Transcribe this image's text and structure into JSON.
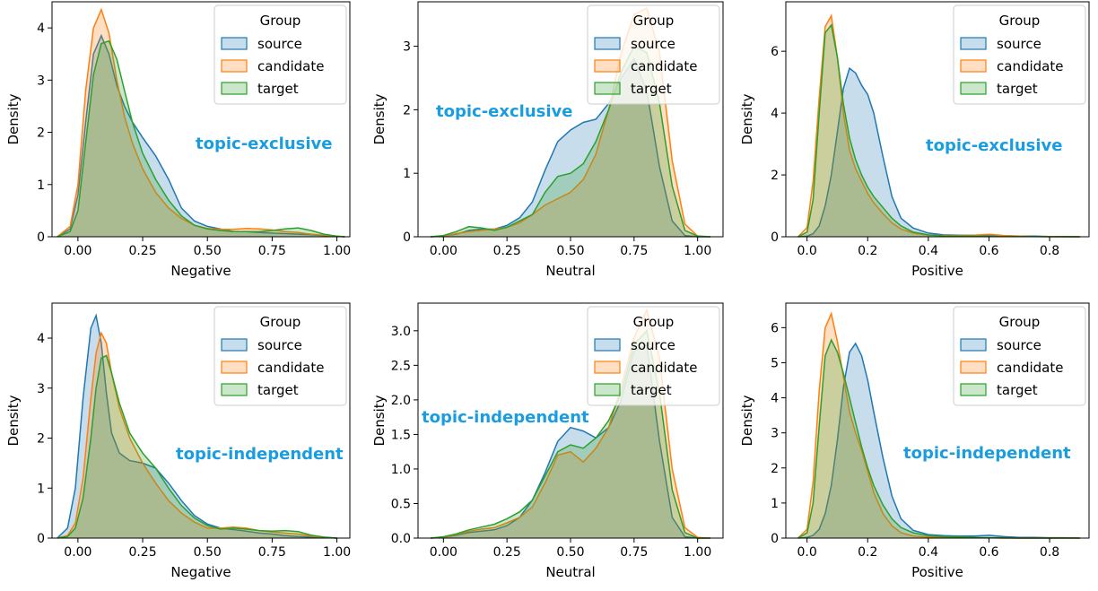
{
  "chart_data": [
    {
      "type": "area",
      "xlabel": "Negative",
      "ylabel": "Density",
      "xlim": [
        -0.1,
        1.05
      ],
      "ylim": [
        0,
        4.5
      ],
      "xticks": [
        "0.00",
        "0.25",
        "0.50",
        "0.75",
        "1.00"
      ],
      "yticks": [
        "0",
        "1",
        "2",
        "3",
        "4"
      ],
      "annotation": "topic-exclusive",
      "legend": {
        "title": "Group",
        "placement": "top-right",
        "entries": [
          "source",
          "candidate",
          "target"
        ]
      },
      "x": [
        -0.08,
        -0.03,
        0.0,
        0.03,
        0.06,
        0.09,
        0.12,
        0.15,
        0.18,
        0.21,
        0.25,
        0.3,
        0.35,
        0.4,
        0.45,
        0.5,
        0.55,
        0.6,
        0.65,
        0.7,
        0.75,
        0.8,
        0.85,
        0.9,
        0.95,
        1.0,
        1.03
      ],
      "series": [
        {
          "name": "source",
          "color": "#1f77b4",
          "values": [
            0,
            0.15,
            0.8,
            2.2,
            3.5,
            3.85,
            3.5,
            2.9,
            2.5,
            2.2,
            1.9,
            1.55,
            1.1,
            0.55,
            0.3,
            0.2,
            0.15,
            0.1,
            0.1,
            0.08,
            0.07,
            0.06,
            0.05,
            0.04,
            0.02,
            0.01,
            0
          ]
        },
        {
          "name": "candidate",
          "color": "#ff7f0e",
          "values": [
            0,
            0.2,
            1.0,
            2.8,
            4.0,
            4.35,
            3.9,
            3.0,
            2.3,
            1.8,
            1.3,
            0.85,
            0.55,
            0.35,
            0.22,
            0.16,
            0.14,
            0.14,
            0.16,
            0.15,
            0.13,
            0.1,
            0.08,
            0.05,
            0.03,
            0.01,
            0
          ]
        },
        {
          "name": "target",
          "color": "#2ca02c",
          "values": [
            0,
            0.1,
            0.5,
            1.8,
            3.1,
            3.7,
            3.75,
            3.4,
            2.8,
            2.2,
            1.6,
            1.1,
            0.7,
            0.4,
            0.22,
            0.15,
            0.12,
            0.1,
            0.1,
            0.1,
            0.12,
            0.15,
            0.17,
            0.12,
            0.05,
            0.01,
            0
          ]
        }
      ]
    },
    {
      "type": "area",
      "xlabel": "Neutral",
      "ylabel": "Density",
      "xlim": [
        -0.1,
        1.1
      ],
      "ylim": [
        0,
        3.7
      ],
      "xticks": [
        "0.00",
        "0.25",
        "0.50",
        "0.75",
        "1.00"
      ],
      "yticks": [
        "0",
        "1",
        "2",
        "3"
      ],
      "annotation": "topic-exclusive",
      "legend": {
        "title": "Group",
        "placement": "top-right",
        "entries": [
          "source",
          "candidate",
          "target"
        ]
      },
      "x": [
        -0.05,
        0.0,
        0.05,
        0.1,
        0.15,
        0.2,
        0.25,
        0.3,
        0.35,
        0.4,
        0.45,
        0.5,
        0.55,
        0.6,
        0.65,
        0.7,
        0.75,
        0.8,
        0.85,
        0.9,
        0.95,
        1.0,
        1.05
      ],
      "series": [
        {
          "name": "source",
          "color": "#1f77b4",
          "values": [
            0,
            0.01,
            0.04,
            0.1,
            0.12,
            0.12,
            0.18,
            0.3,
            0.55,
            1.05,
            1.5,
            1.68,
            1.8,
            1.85,
            2.1,
            2.5,
            2.8,
            2.3,
            1.1,
            0.25,
            0.02,
            0,
            0
          ]
        },
        {
          "name": "candidate",
          "color": "#ff7f0e",
          "values": [
            0,
            0.01,
            0.05,
            0.08,
            0.1,
            0.12,
            0.15,
            0.22,
            0.35,
            0.5,
            0.6,
            0.7,
            0.9,
            1.3,
            2.0,
            2.9,
            3.5,
            3.6,
            2.9,
            1.2,
            0.2,
            0.01,
            0
          ]
        },
        {
          "name": "target",
          "color": "#2ca02c",
          "values": [
            0,
            0.02,
            0.08,
            0.16,
            0.14,
            0.1,
            0.15,
            0.25,
            0.35,
            0.7,
            0.95,
            1.0,
            1.15,
            1.5,
            2.0,
            2.6,
            3.0,
            2.9,
            2.1,
            0.8,
            0.1,
            0.01,
            0
          ]
        }
      ]
    },
    {
      "type": "area",
      "xlabel": "Positive",
      "ylabel": "Density",
      "xlim": [
        -0.07,
        0.93
      ],
      "ylim": [
        0,
        7.6
      ],
      "xticks": [
        "0.0",
        "0.2",
        "0.4",
        "0.6",
        "0.8"
      ],
      "yticks": [
        "0",
        "2",
        "4",
        "6"
      ],
      "annotation": "topic-exclusive",
      "legend": {
        "title": "Group",
        "placement": "top-right",
        "entries": [
          "source",
          "candidate",
          "target"
        ]
      },
      "x": [
        -0.03,
        0.0,
        0.02,
        0.04,
        0.06,
        0.08,
        0.1,
        0.12,
        0.14,
        0.16,
        0.18,
        0.2,
        0.22,
        0.25,
        0.28,
        0.31,
        0.35,
        0.4,
        0.45,
        0.5,
        0.55,
        0.6,
        0.65,
        0.7,
        0.75,
        0.8,
        0.85,
        0.9
      ],
      "series": [
        {
          "name": "source",
          "color": "#1f77b4",
          "values": [
            0,
            0.02,
            0.1,
            0.35,
            1.0,
            2.0,
            3.4,
            4.8,
            5.45,
            5.3,
            4.9,
            4.6,
            4.0,
            2.6,
            1.3,
            0.6,
            0.28,
            0.12,
            0.06,
            0.05,
            0.05,
            0.04,
            0.03,
            0.02,
            0.02,
            0.01,
            0.01,
            0
          ]
        },
        {
          "name": "candidate",
          "color": "#ff7f0e",
          "values": [
            0,
            0.3,
            1.8,
            4.5,
            6.8,
            7.15,
            5.8,
            4.0,
            2.8,
            2.2,
            1.8,
            1.4,
            1.1,
            0.75,
            0.45,
            0.25,
            0.12,
            0.05,
            0.04,
            0.04,
            0.05,
            0.08,
            0.04,
            0.02,
            0.01,
            0.01,
            0,
            0
          ]
        },
        {
          "name": "target",
          "color": "#2ca02c",
          "values": [
            0,
            0.15,
            1.2,
            4.0,
            6.6,
            6.85,
            5.8,
            4.3,
            3.2,
            2.5,
            2.0,
            1.6,
            1.3,
            0.95,
            0.6,
            0.35,
            0.15,
            0.06,
            0.03,
            0.02,
            0.02,
            0.01,
            0.01,
            0.01,
            0.01,
            0,
            0,
            0
          ]
        }
      ]
    },
    {
      "type": "area",
      "xlabel": "Negative",
      "ylabel": "Density",
      "xlim": [
        -0.1,
        1.05
      ],
      "ylim": [
        0,
        4.7
      ],
      "xticks": [
        "0.00",
        "0.25",
        "0.50",
        "0.75",
        "1.00"
      ],
      "yticks": [
        "0",
        "1",
        "2",
        "3",
        "4"
      ],
      "annotation": "topic-independent",
      "legend": {
        "title": "Group",
        "placement": "top-right",
        "entries": [
          "source",
          "candidate",
          "target"
        ]
      },
      "x": [
        -0.08,
        -0.04,
        -0.01,
        0.02,
        0.05,
        0.07,
        0.09,
        0.11,
        0.13,
        0.16,
        0.2,
        0.25,
        0.3,
        0.35,
        0.4,
        0.45,
        0.5,
        0.55,
        0.6,
        0.65,
        0.7,
        0.75,
        0.8,
        0.85,
        0.9,
        0.95,
        1.0
      ],
      "series": [
        {
          "name": "source",
          "color": "#1f77b4",
          "values": [
            0,
            0.2,
            1.0,
            2.8,
            4.2,
            4.45,
            3.9,
            2.9,
            2.1,
            1.7,
            1.55,
            1.5,
            1.4,
            1.1,
            0.75,
            0.45,
            0.28,
            0.2,
            0.17,
            0.14,
            0.1,
            0.08,
            0.05,
            0.03,
            0.02,
            0.01,
            0
          ]
        },
        {
          "name": "candidate",
          "color": "#ff7f0e",
          "values": [
            0,
            0.05,
            0.3,
            1.2,
            2.8,
            3.7,
            4.1,
            3.9,
            3.3,
            2.6,
            2.0,
            1.5,
            1.1,
            0.75,
            0.5,
            0.32,
            0.2,
            0.2,
            0.22,
            0.2,
            0.15,
            0.12,
            0.1,
            0.08,
            0.04,
            0.01,
            0
          ]
        },
        {
          "name": "target",
          "color": "#2ca02c",
          "values": [
            0,
            0.03,
            0.2,
            0.8,
            2.0,
            3.0,
            3.6,
            3.65,
            3.3,
            2.7,
            2.1,
            1.7,
            1.4,
            1.0,
            0.65,
            0.4,
            0.25,
            0.18,
            0.2,
            0.18,
            0.15,
            0.14,
            0.15,
            0.13,
            0.06,
            0.02,
            0
          ]
        }
      ]
    },
    {
      "type": "area",
      "xlabel": "Neutral",
      "ylabel": "Density",
      "xlim": [
        -0.1,
        1.1
      ],
      "ylim": [
        0,
        3.4
      ],
      "xticks": [
        "0.00",
        "0.25",
        "0.50",
        "0.75",
        "1.00"
      ],
      "yticks": [
        "0.0",
        "0.5",
        "1.0",
        "1.5",
        "2.0",
        "2.5",
        "3.0"
      ],
      "annotation": "topic-independent",
      "legend": {
        "title": "Group",
        "placement": "top-right",
        "entries": [
          "source",
          "candidate",
          "target"
        ]
      },
      "x": [
        -0.05,
        0.0,
        0.05,
        0.1,
        0.15,
        0.2,
        0.25,
        0.3,
        0.35,
        0.4,
        0.45,
        0.5,
        0.55,
        0.6,
        0.65,
        0.7,
        0.75,
        0.8,
        0.85,
        0.9,
        0.95,
        1.0,
        1.05
      ],
      "series": [
        {
          "name": "source",
          "color": "#1f77b4",
          "values": [
            0,
            0.01,
            0.04,
            0.08,
            0.1,
            0.12,
            0.18,
            0.3,
            0.55,
            0.95,
            1.4,
            1.6,
            1.55,
            1.45,
            1.6,
            2.0,
            2.7,
            2.8,
            1.4,
            0.3,
            0.02,
            0,
            0
          ]
        },
        {
          "name": "candidate",
          "color": "#ff7f0e",
          "values": [
            0,
            0.01,
            0.05,
            0.1,
            0.13,
            0.15,
            0.22,
            0.3,
            0.45,
            0.8,
            1.2,
            1.25,
            1.1,
            1.3,
            1.6,
            2.2,
            2.9,
            3.3,
            2.6,
            1.0,
            0.15,
            0.01,
            0
          ]
        },
        {
          "name": "target",
          "color": "#2ca02c",
          "values": [
            0,
            0.02,
            0.06,
            0.12,
            0.16,
            0.2,
            0.28,
            0.38,
            0.55,
            0.9,
            1.25,
            1.35,
            1.3,
            1.45,
            1.7,
            2.1,
            2.8,
            3.0,
            2.1,
            0.7,
            0.08,
            0,
            0
          ]
        }
      ]
    },
    {
      "type": "area",
      "xlabel": "Positive",
      "ylabel": "Density",
      "xlim": [
        -0.07,
        0.93
      ],
      "ylim": [
        0,
        6.7
      ],
      "xticks": [
        "0.0",
        "0.2",
        "0.4",
        "0.6",
        "0.8"
      ],
      "yticks": [
        "0",
        "1",
        "2",
        "3",
        "4",
        "5",
        "6"
      ],
      "annotation": "topic-independent",
      "legend": {
        "title": "Group",
        "placement": "top-right",
        "entries": [
          "source",
          "candidate",
          "target"
        ]
      },
      "x": [
        -0.03,
        0.0,
        0.02,
        0.04,
        0.06,
        0.08,
        0.1,
        0.12,
        0.14,
        0.16,
        0.18,
        0.2,
        0.22,
        0.25,
        0.28,
        0.31,
        0.35,
        0.4,
        0.45,
        0.5,
        0.55,
        0.6,
        0.65,
        0.7,
        0.75,
        0.8,
        0.85,
        0.9
      ],
      "series": [
        {
          "name": "source",
          "color": "#1f77b4",
          "values": [
            0,
            0.02,
            0.08,
            0.25,
            0.7,
            1.5,
            2.8,
            4.3,
            5.3,
            5.55,
            5.2,
            4.5,
            3.6,
            2.3,
            1.2,
            0.55,
            0.22,
            0.1,
            0.07,
            0.06,
            0.06,
            0.08,
            0.04,
            0.02,
            0.02,
            0.01,
            0.01,
            0
          ]
        },
        {
          "name": "candidate",
          "color": "#ff7f0e",
          "values": [
            0,
            0.25,
            1.6,
            4.2,
            6.0,
            6.4,
            5.6,
            4.6,
            3.6,
            3.0,
            2.5,
            1.9,
            1.3,
            0.7,
            0.35,
            0.15,
            0.06,
            0.03,
            0.02,
            0.02,
            0.01,
            0.01,
            0,
            0,
            0,
            0,
            0,
            0
          ]
        },
        {
          "name": "target",
          "color": "#2ca02c",
          "values": [
            0,
            0.15,
            1.0,
            3.2,
            5.2,
            5.65,
            5.3,
            4.7,
            4.0,
            3.3,
            2.6,
            2.0,
            1.5,
            0.95,
            0.55,
            0.3,
            0.15,
            0.07,
            0.04,
            0.03,
            0.02,
            0.01,
            0.01,
            0,
            0,
            0,
            0,
            0
          ]
        }
      ]
    }
  ]
}
